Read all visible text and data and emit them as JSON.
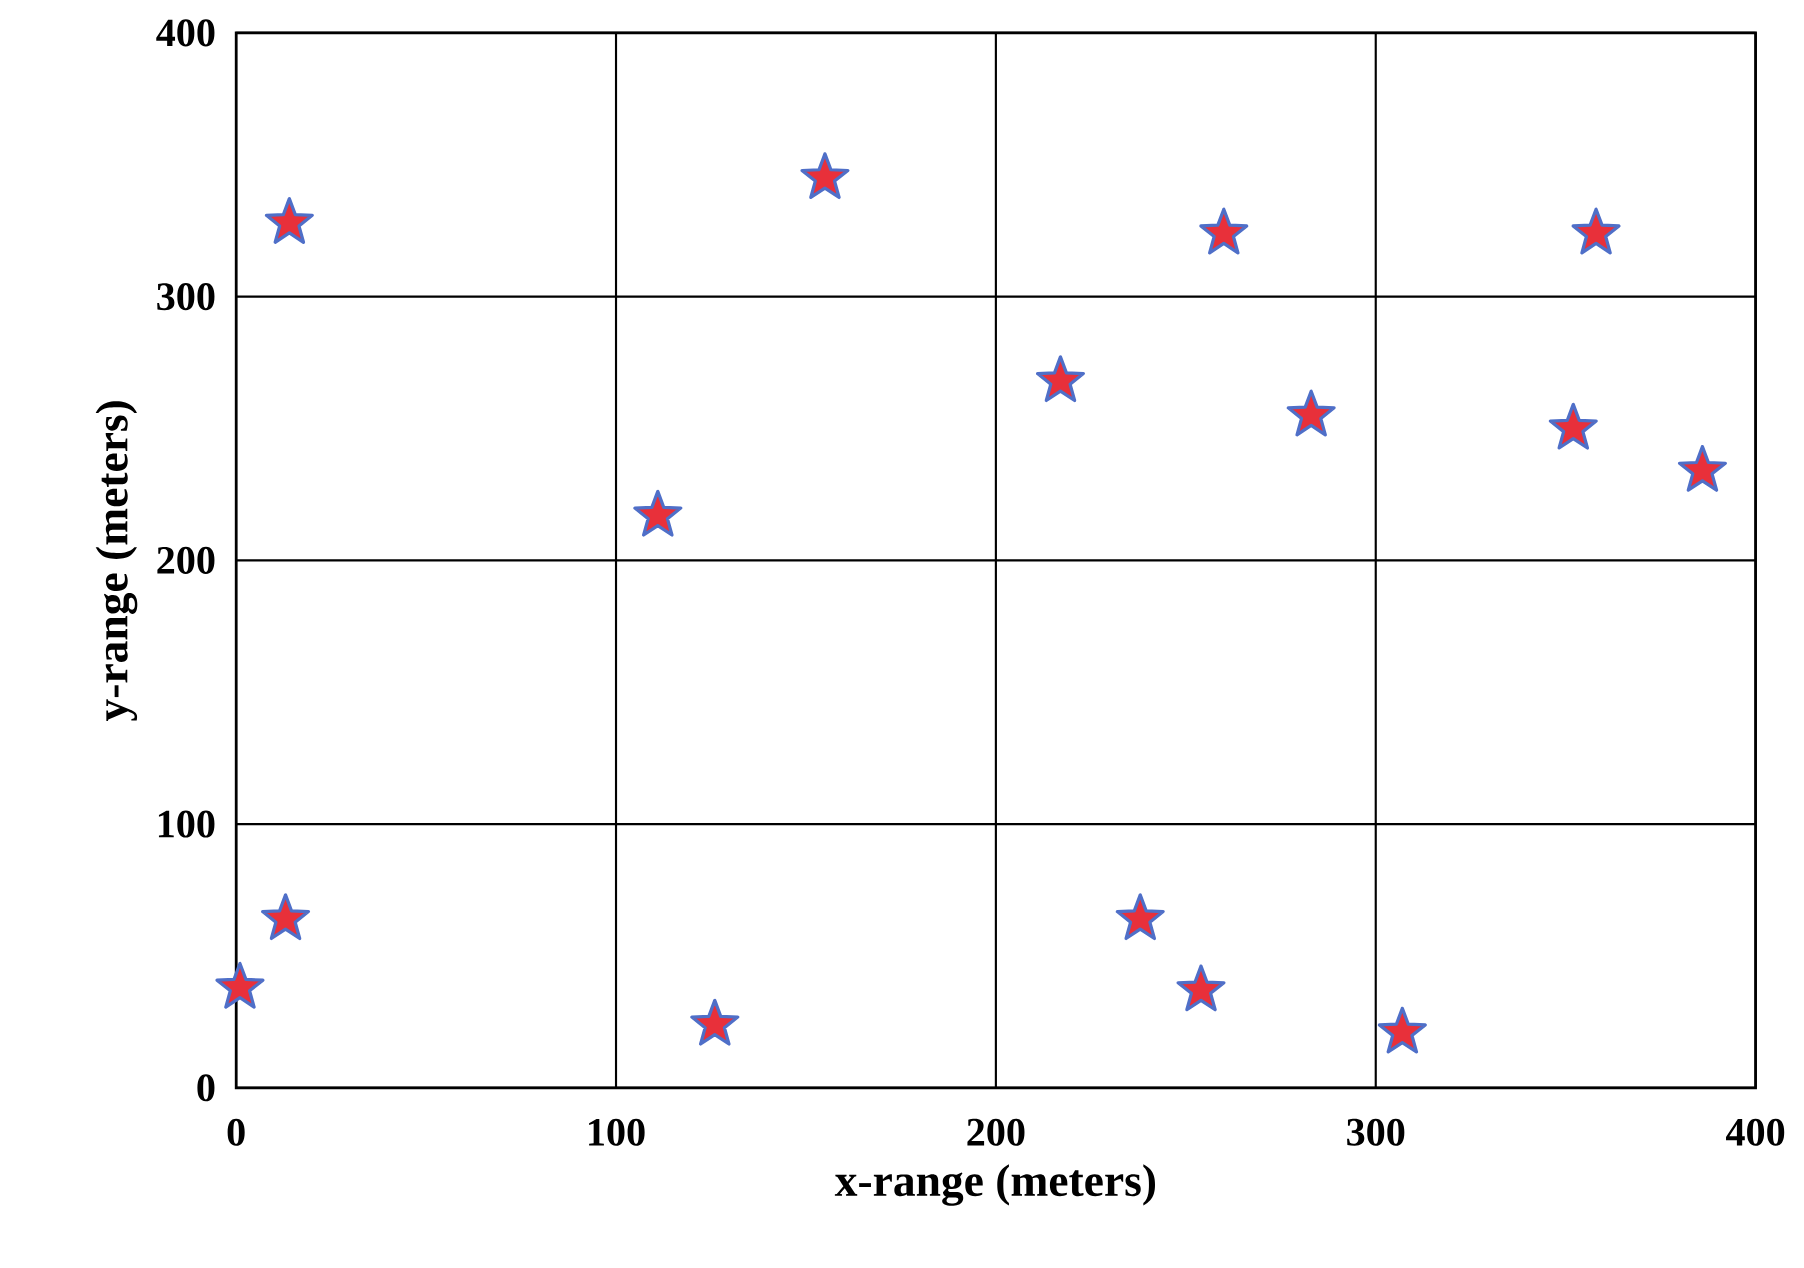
{
  "chart_data": {
    "type": "scatter",
    "xlabel": "x-range (meters)",
    "ylabel": "y-range (meters)",
    "x": [
      14,
      155,
      260,
      358,
      217,
      283,
      352,
      386,
      111,
      13,
      1,
      126,
      238,
      254,
      307
    ],
    "values": [
      328,
      345,
      324,
      324,
      268,
      255,
      250,
      234,
      217,
      64,
      38,
      24,
      64,
      37,
      21
    ],
    "color": "#e8303a",
    "xlim": [
      0,
      400
    ],
    "ylim": [
      0,
      400
    ],
    "xticks": [
      0,
      100,
      200,
      300,
      400
    ],
    "yticks": [
      0,
      100,
      200,
      300,
      400
    ],
    "grid": true,
    "marker": "star"
  }
}
